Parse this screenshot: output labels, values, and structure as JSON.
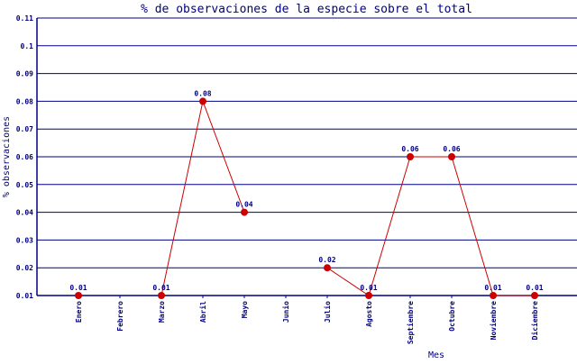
{
  "chart_data": {
    "type": "line",
    "title": "% de observaciones de la especie sobre el total",
    "xlabel": "Mes",
    "ylabel": "% observaciones",
    "categories": [
      "Enero",
      "Febrero",
      "Marzo",
      "Abril",
      "Mayo",
      "Junio",
      "Julio",
      "Agosto",
      "Septiembre",
      "Octubre",
      "Noviembre",
      "Diciembre"
    ],
    "values": [
      0.01,
      null,
      0.01,
      0.08,
      0.04,
      null,
      0.02,
      0.01,
      0.06,
      0.06,
      0.01,
      0.01
    ],
    "data_labels": [
      "0.01",
      "",
      "0.01",
      "0.08",
      "0.04",
      "",
      "0.02",
      "0.01",
      "0.06",
      "0.06",
      "0.01",
      "0.01"
    ],
    "yticks": [
      "0.01",
      "0.02",
      "0.03",
      "0.04",
      "0.05",
      "0.06",
      "0.07",
      "0.08",
      "0.09",
      "0.1",
      "0.11"
    ],
    "ylim": [
      0.01,
      0.11
    ],
    "grid": true,
    "colors": {
      "axis": "#000080",
      "line": "#cc0000",
      "marker": "#cc0000"
    }
  }
}
